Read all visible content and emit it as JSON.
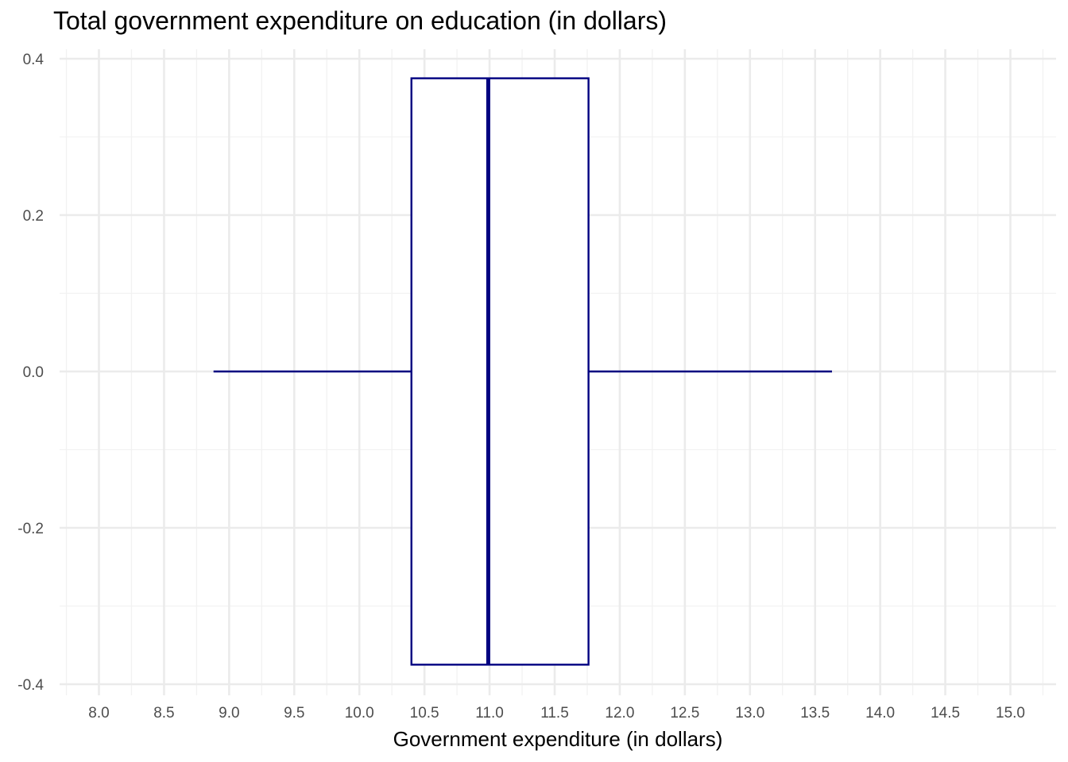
{
  "chart_data": {
    "type": "boxplot",
    "title": "Total government expenditure on education (in dollars)",
    "xlabel": "Government expenditure (in dollars)",
    "ylabel": "",
    "xlim": [
      7.75,
      15.25
    ],
    "ylim": [
      -0.4,
      0.4
    ],
    "x_ticks": [
      {
        "value": 8.0,
        "label": "8.0"
      },
      {
        "value": 8.5,
        "label": "8.5"
      },
      {
        "value": 9.0,
        "label": "9.0"
      },
      {
        "value": 9.5,
        "label": "9.5"
      },
      {
        "value": 10.0,
        "label": "10.0"
      },
      {
        "value": 10.5,
        "label": "10.5"
      },
      {
        "value": 11.0,
        "label": "11.0"
      },
      {
        "value": 11.5,
        "label": "11.5"
      },
      {
        "value": 12.0,
        "label": "12.0"
      },
      {
        "value": 12.5,
        "label": "12.5"
      },
      {
        "value": 13.0,
        "label": "13.0"
      },
      {
        "value": 13.5,
        "label": "13.5"
      },
      {
        "value": 14.0,
        "label": "14.0"
      },
      {
        "value": 14.5,
        "label": "14.5"
      },
      {
        "value": 15.0,
        "label": "15.0"
      }
    ],
    "y_ticks": [
      {
        "value": 0.4,
        "label": "0.4"
      },
      {
        "value": 0.2,
        "label": "0.2"
      },
      {
        "value": 0.0,
        "label": "0.0"
      },
      {
        "value": -0.2,
        "label": "-0.2"
      },
      {
        "value": -0.4,
        "label": "-0.4"
      }
    ],
    "box": {
      "whisker_low": 8.88,
      "q1": 10.4,
      "median": 10.99,
      "q3": 11.76,
      "whisker_high": 13.63,
      "box_ymin": -0.375,
      "box_ymax": 0.375,
      "center_y": 0.0
    },
    "grid": true,
    "legend": "none",
    "colors": {
      "box_stroke": "#000080",
      "box_fill": "#ffffff",
      "grid_major": "#ebebeb",
      "grid_minor": "#f2f2f2",
      "tick_text": "#4d4d4d"
    }
  }
}
